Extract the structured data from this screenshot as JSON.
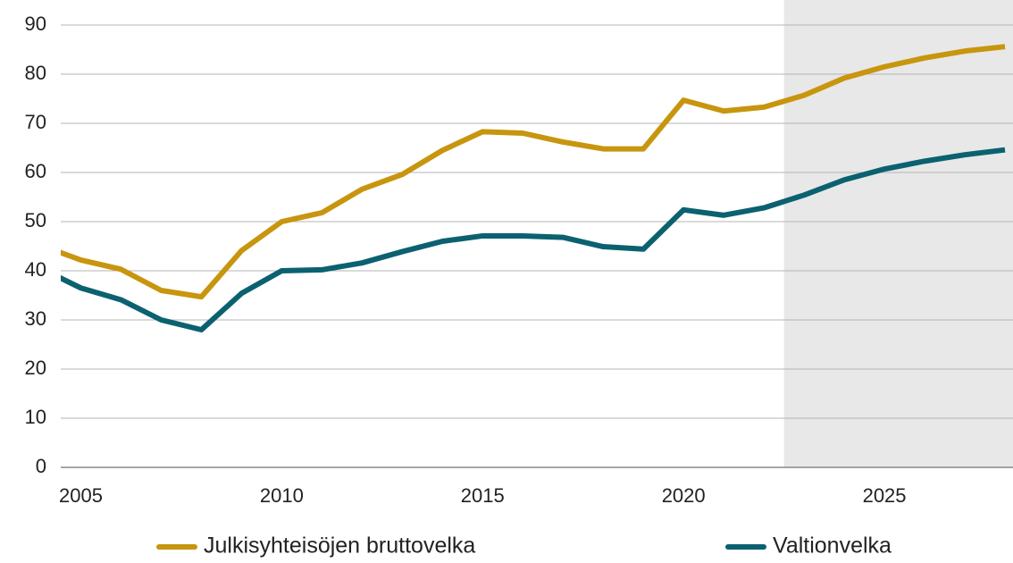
{
  "chart_data": {
    "type": "line",
    "x": [
      2004,
      2005,
      2006,
      2007,
      2008,
      2009,
      2010,
      2011,
      2012,
      2013,
      2014,
      2015,
      2016,
      2017,
      2018,
      2019,
      2020,
      2021,
      2022,
      2023,
      2024,
      2025,
      2026,
      2027,
      2028
    ],
    "series": [
      {
        "name": "Julkisyhteisöjen bruttovelka",
        "color": "#c8950e",
        "values": [
          45.2,
          42.2,
          40.3,
          36,
          34.7,
          44.1,
          50,
          51.8,
          56.6,
          59.6,
          64.5,
          68.3,
          68,
          66.2,
          64.8,
          64.8,
          74.7,
          72.5,
          73.3,
          75.7,
          79.2,
          81.5,
          83.3,
          84.7,
          85.6
        ]
      },
      {
        "name": "Valtionvelka",
        "color": "#0b6170",
        "values": [
          40.5,
          36.5,
          34.1,
          30,
          28,
          35.4,
          40,
          40.2,
          41.6,
          43.9,
          46,
          47.1,
          47.1,
          46.8,
          44.9,
          44.4,
          52.4,
          51.3,
          52.8,
          55.4,
          58.5,
          60.7,
          62.3,
          63.6,
          64.6
        ]
      }
    ],
    "xlim": [
      2004.5,
      2028.2
    ],
    "xticks": [
      2005,
      2010,
      2015,
      2020,
      2025
    ],
    "ylim": [
      0,
      90
    ],
    "yticks": [
      0,
      10,
      20,
      30,
      40,
      50,
      60,
      70,
      80,
      90
    ],
    "grid": true,
    "forecast_start": 2022.5,
    "legend": "bottom"
  }
}
